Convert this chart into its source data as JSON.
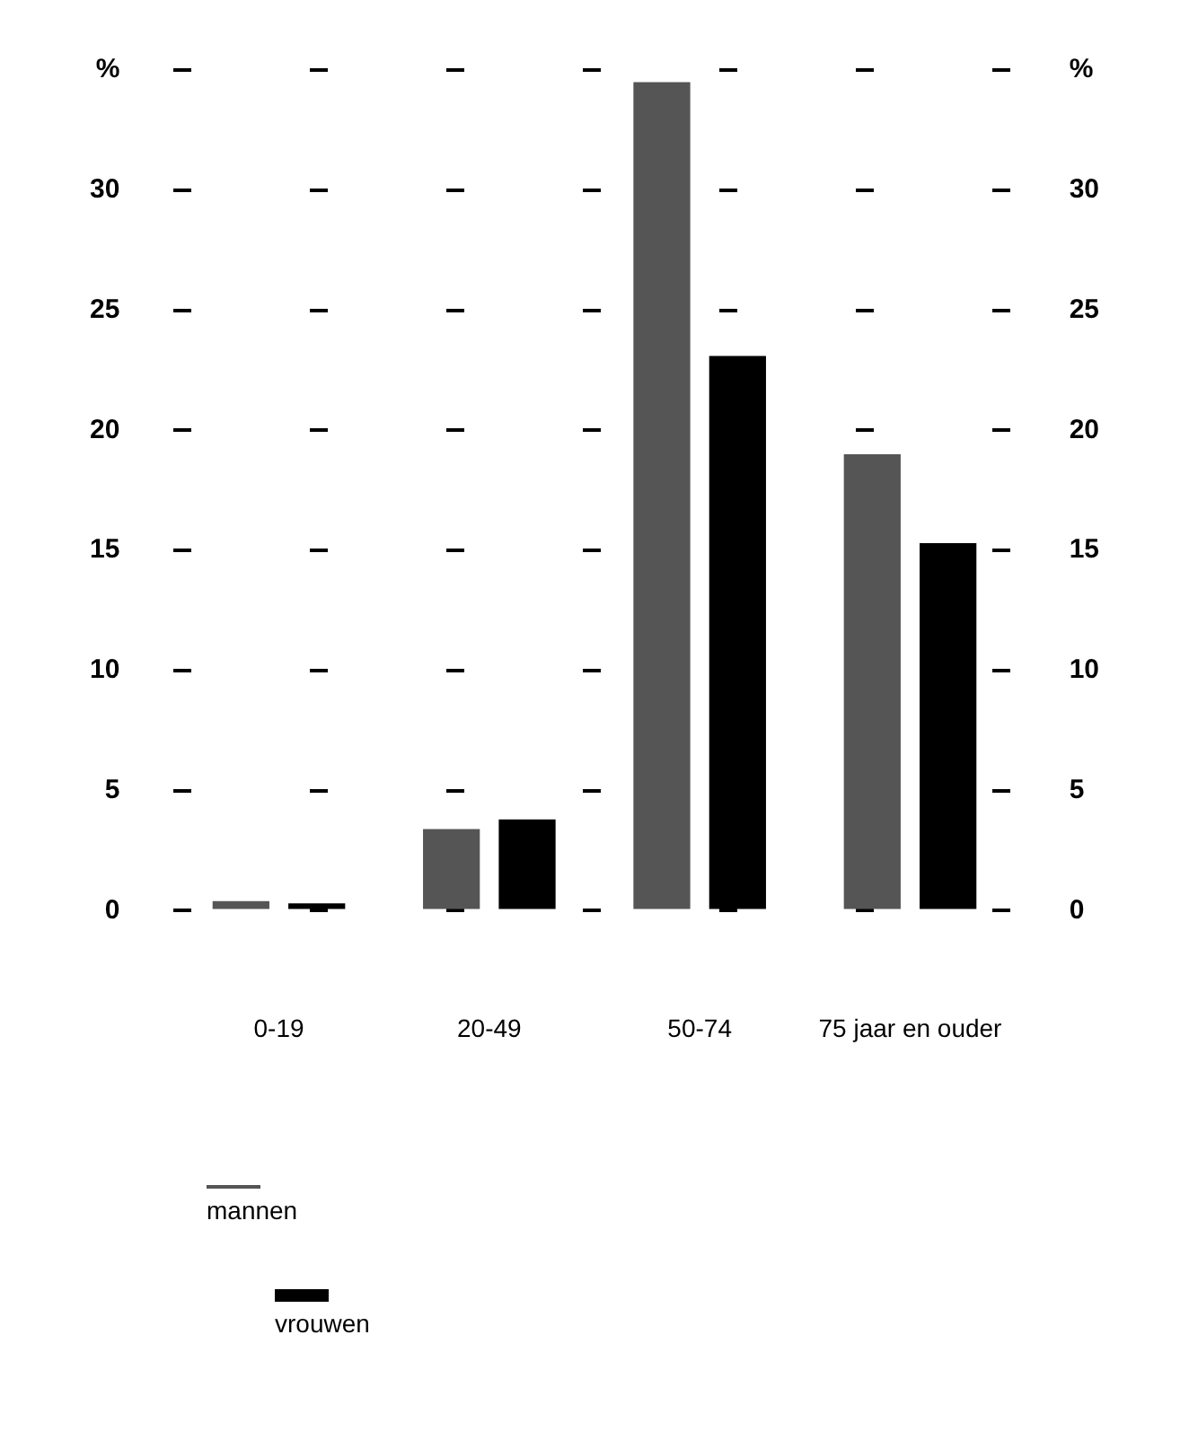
{
  "chart_data": {
    "type": "bar",
    "categories": [
      "0-19",
      "20-49",
      "50-74",
      "75 jaar en ouder"
    ],
    "series": [
      {
        "name": "mannen",
        "color": "#555555",
        "values": [
          0.4,
          3.4,
          34.5,
          19.0
        ]
      },
      {
        "name": "vrouwen",
        "color": "#000000",
        "values": [
          0.3,
          3.8,
          23.1,
          15.3
        ]
      }
    ],
    "ylim": [
      0,
      35
    ],
    "yticks": [
      0,
      5,
      10,
      15,
      20,
      25,
      30,
      {
        "value": 35,
        "label": "%"
      }
    ],
    "y2lim": [
      0,
      35
    ],
    "y2ticks": [
      0,
      5,
      10,
      15,
      20,
      25,
      30,
      {
        "value": 35,
        "label": "%"
      }
    ],
    "grid": "y",
    "line_style": "dashed",
    "legend": "bottom left"
  }
}
